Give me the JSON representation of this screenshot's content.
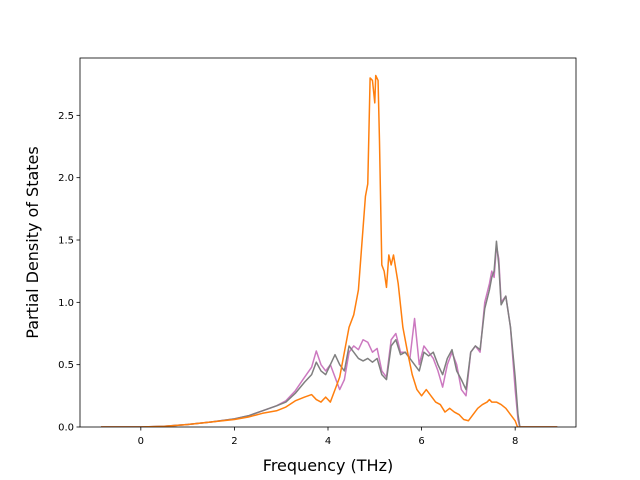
{
  "chart_data": {
    "type": "line",
    "title": "",
    "xlabel": "Frequency (THz)",
    "ylabel": "Partial Density of States",
    "xlim": [
      -1.3,
      9.3
    ],
    "ylim": [
      0,
      2.96
    ],
    "xticks": [
      0,
      2,
      4,
      6,
      8
    ],
    "yticks": [
      0.0,
      0.5,
      1.0,
      1.5,
      2.0,
      2.5
    ],
    "xtick_labels": [
      "0",
      "2",
      "4",
      "6",
      "8"
    ],
    "ytick_labels": [
      "0.0",
      "0.5",
      "1.0",
      "1.5",
      "2.0",
      "2.5"
    ],
    "grid": false,
    "legend": "none",
    "series": [
      {
        "color": "#cc79c0",
        "points": [
          [
            -0.85,
            0
          ],
          [
            0,
            0
          ],
          [
            0.5,
            0.006
          ],
          [
            1,
            0.02
          ],
          [
            1.5,
            0.04
          ],
          [
            2,
            0.065
          ],
          [
            2.3,
            0.09
          ],
          [
            2.6,
            0.13
          ],
          [
            2.9,
            0.17
          ],
          [
            3.1,
            0.21
          ],
          [
            3.3,
            0.29
          ],
          [
            3.5,
            0.4
          ],
          [
            3.65,
            0.48
          ],
          [
            3.75,
            0.61
          ],
          [
            3.85,
            0.5
          ],
          [
            3.95,
            0.45
          ],
          [
            4.05,
            0.5
          ],
          [
            4.15,
            0.4
          ],
          [
            4.25,
            0.3
          ],
          [
            4.35,
            0.38
          ],
          [
            4.45,
            0.6
          ],
          [
            4.55,
            0.65
          ],
          [
            4.65,
            0.62
          ],
          [
            4.75,
            0.7
          ],
          [
            4.85,
            0.68
          ],
          [
            4.95,
            0.6
          ],
          [
            5.05,
            0.63
          ],
          [
            5.15,
            0.45
          ],
          [
            5.25,
            0.4
          ],
          [
            5.35,
            0.7
          ],
          [
            5.45,
            0.75
          ],
          [
            5.55,
            0.6
          ],
          [
            5.65,
            0.6
          ],
          [
            5.75,
            0.55
          ],
          [
            5.85,
            0.87
          ],
          [
            5.95,
            0.5
          ],
          [
            6.05,
            0.65
          ],
          [
            6.15,
            0.6
          ],
          [
            6.25,
            0.55
          ],
          [
            6.35,
            0.45
          ],
          [
            6.45,
            0.32
          ],
          [
            6.55,
            0.5
          ],
          [
            6.65,
            0.6
          ],
          [
            6.75,
            0.5
          ],
          [
            6.85,
            0.3
          ],
          [
            6.95,
            0.25
          ],
          [
            7.05,
            0.6
          ],
          [
            7.15,
            0.65
          ],
          [
            7.25,
            0.6
          ],
          [
            7.35,
            1.0
          ],
          [
            7.45,
            1.15
          ],
          [
            7.5,
            1.25
          ],
          [
            7.55,
            1.2
          ],
          [
            7.6,
            1.45
          ],
          [
            7.65,
            1.35
          ],
          [
            7.7,
            1.0
          ],
          [
            7.8,
            1.05
          ],
          [
            7.9,
            0.8
          ],
          [
            8.0,
            0.3
          ],
          [
            8.06,
            0.06
          ],
          [
            8.1,
            0.0
          ],
          [
            8.9,
            0.0
          ]
        ]
      },
      {
        "color": "#7f7f7f",
        "points": [
          [
            -0.85,
            0
          ],
          [
            0,
            0
          ],
          [
            0.5,
            0.006
          ],
          [
            1,
            0.02
          ],
          [
            1.5,
            0.04
          ],
          [
            2,
            0.065
          ],
          [
            2.3,
            0.09
          ],
          [
            2.6,
            0.13
          ],
          [
            2.9,
            0.17
          ],
          [
            3.1,
            0.2
          ],
          [
            3.3,
            0.27
          ],
          [
            3.5,
            0.36
          ],
          [
            3.65,
            0.42
          ],
          [
            3.75,
            0.52
          ],
          [
            3.85,
            0.45
          ],
          [
            3.95,
            0.42
          ],
          [
            4.05,
            0.5
          ],
          [
            4.15,
            0.58
          ],
          [
            4.25,
            0.5
          ],
          [
            4.35,
            0.45
          ],
          [
            4.45,
            0.65
          ],
          [
            4.55,
            0.6
          ],
          [
            4.65,
            0.55
          ],
          [
            4.75,
            0.53
          ],
          [
            4.85,
            0.55
          ],
          [
            4.95,
            0.52
          ],
          [
            5.05,
            0.55
          ],
          [
            5.15,
            0.42
          ],
          [
            5.25,
            0.38
          ],
          [
            5.35,
            0.65
          ],
          [
            5.45,
            0.7
          ],
          [
            5.55,
            0.58
          ],
          [
            5.65,
            0.6
          ],
          [
            5.75,
            0.55
          ],
          [
            5.85,
            0.5
          ],
          [
            5.95,
            0.45
          ],
          [
            6.05,
            0.6
          ],
          [
            6.15,
            0.57
          ],
          [
            6.25,
            0.6
          ],
          [
            6.35,
            0.5
          ],
          [
            6.45,
            0.42
          ],
          [
            6.55,
            0.55
          ],
          [
            6.65,
            0.62
          ],
          [
            6.75,
            0.45
          ],
          [
            6.85,
            0.38
          ],
          [
            6.95,
            0.3
          ],
          [
            7.05,
            0.6
          ],
          [
            7.15,
            0.65
          ],
          [
            7.25,
            0.62
          ],
          [
            7.35,
            0.95
          ],
          [
            7.45,
            1.1
          ],
          [
            7.5,
            1.2
          ],
          [
            7.55,
            1.25
          ],
          [
            7.6,
            1.49
          ],
          [
            7.65,
            1.3
          ],
          [
            7.7,
            0.98
          ],
          [
            7.8,
            1.05
          ],
          [
            7.9,
            0.8
          ],
          [
            8.0,
            0.4
          ],
          [
            8.06,
            0.1
          ],
          [
            8.1,
            0.0
          ],
          [
            8.9,
            0.0
          ]
        ]
      },
      {
        "color": "#ff7f0e",
        "points": [
          [
            -0.85,
            0
          ],
          [
            0,
            0
          ],
          [
            0.5,
            0.005
          ],
          [
            1,
            0.02
          ],
          [
            1.5,
            0.04
          ],
          [
            2,
            0.06
          ],
          [
            2.3,
            0.08
          ],
          [
            2.6,
            0.11
          ],
          [
            2.9,
            0.13
          ],
          [
            3.1,
            0.16
          ],
          [
            3.3,
            0.21
          ],
          [
            3.5,
            0.24
          ],
          [
            3.65,
            0.26
          ],
          [
            3.75,
            0.22
          ],
          [
            3.85,
            0.2
          ],
          [
            3.95,
            0.24
          ],
          [
            4.05,
            0.2
          ],
          [
            4.15,
            0.3
          ],
          [
            4.25,
            0.4
          ],
          [
            4.35,
            0.6
          ],
          [
            4.45,
            0.8
          ],
          [
            4.55,
            0.9
          ],
          [
            4.65,
            1.1
          ],
          [
            4.75,
            1.6
          ],
          [
            4.8,
            1.85
          ],
          [
            4.85,
            1.95
          ],
          [
            4.9,
            2.8
          ],
          [
            4.95,
            2.78
          ],
          [
            5.0,
            2.6
          ],
          [
            5.02,
            2.82
          ],
          [
            5.07,
            2.78
          ],
          [
            5.1,
            2.3
          ],
          [
            5.15,
            1.3
          ],
          [
            5.2,
            1.25
          ],
          [
            5.25,
            1.12
          ],
          [
            5.3,
            1.38
          ],
          [
            5.35,
            1.3
          ],
          [
            5.4,
            1.38
          ],
          [
            5.5,
            1.15
          ],
          [
            5.6,
            0.8
          ],
          [
            5.7,
            0.6
          ],
          [
            5.8,
            0.42
          ],
          [
            5.9,
            0.3
          ],
          [
            6.0,
            0.25
          ],
          [
            6.1,
            0.3
          ],
          [
            6.2,
            0.25
          ],
          [
            6.3,
            0.2
          ],
          [
            6.4,
            0.18
          ],
          [
            6.5,
            0.12
          ],
          [
            6.6,
            0.15
          ],
          [
            6.7,
            0.12
          ],
          [
            6.8,
            0.1
          ],
          [
            6.9,
            0.06
          ],
          [
            7.0,
            0.05
          ],
          [
            7.1,
            0.1
          ],
          [
            7.2,
            0.15
          ],
          [
            7.3,
            0.18
          ],
          [
            7.4,
            0.2
          ],
          [
            7.45,
            0.22
          ],
          [
            7.5,
            0.2
          ],
          [
            7.6,
            0.2
          ],
          [
            7.7,
            0.18
          ],
          [
            7.8,
            0.15
          ],
          [
            7.9,
            0.1
          ],
          [
            8.0,
            0.05
          ],
          [
            8.05,
            0.0
          ],
          [
            8.9,
            0.0
          ]
        ]
      }
    ]
  }
}
